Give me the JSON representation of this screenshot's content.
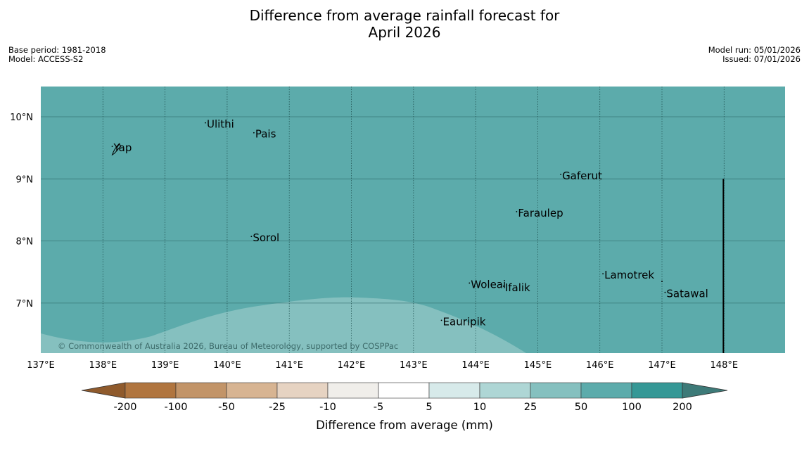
{
  "title": {
    "line1": "Difference from average rainfall forecast for",
    "line2": "April 2026"
  },
  "meta_left": {
    "base_period": "Base period: 1981-2018",
    "model": "Model: ACCESS-S2"
  },
  "meta_right": {
    "model_run": "Model run: 05/01/2026",
    "issued": "Issued: 07/01/2026"
  },
  "map": {
    "lon_range": [
      137,
      149
    ],
    "lat_range": [
      6.2,
      10.5
    ],
    "lon_ticks": [
      137,
      138,
      139,
      140,
      141,
      142,
      143,
      144,
      145,
      146,
      147,
      148
    ],
    "lon_labels": [
      "137°E",
      "138°E",
      "139°E",
      "140°E",
      "141°E",
      "142°E",
      "143°E",
      "144°E",
      "145°E",
      "146°E",
      "147°E",
      "148°E"
    ],
    "lat_ticks": [
      7,
      8,
      9,
      10
    ],
    "lat_labels": [
      "7°N",
      "8°N",
      "9°N",
      "10°N"
    ],
    "background_category": "50 to 100 mm",
    "lighter_zone_category": "25 to 50 mm",
    "islands": [
      {
        "name": "Yap",
        "lon": 138.15,
        "lat": 9.5
      },
      {
        "name": "Ulithi",
        "lon": 139.65,
        "lat": 9.88
      },
      {
        "name": "Pais",
        "lon": 140.43,
        "lat": 9.72
      },
      {
        "name": "Gaferut",
        "lon": 145.37,
        "lat": 9.05
      },
      {
        "name": "Faraulep",
        "lon": 144.66,
        "lat": 8.45
      },
      {
        "name": "Sorol",
        "lon": 140.39,
        "lat": 8.05
      },
      {
        "name": "Woleai",
        "lon": 143.9,
        "lat": 7.3
      },
      {
        "name": "Ifalik",
        "lon": 144.45,
        "lat": 7.25
      },
      {
        "name": "Lamotrek",
        "lon": 146.05,
        "lat": 7.45
      },
      {
        "name": "Satawal",
        "lon": 147.05,
        "lat": 7.15
      },
      {
        "name": "Eauripik",
        "lon": 143.45,
        "lat": 6.7
      }
    ],
    "boundary_line": {
      "lon": 148,
      "lat_from": 6.2,
      "lat_to": 9.0
    },
    "copyright": "© Commonwealth of Australia 2026, Bureau of Meteorology, supported by COSPPac"
  },
  "colorbar": {
    "ticks": [
      "-200",
      "-100",
      "-50",
      "-25",
      "-10",
      "-5",
      "5",
      "10",
      "25",
      "50",
      "100",
      "200"
    ],
    "colors": [
      "#b0753f",
      "#c29468",
      "#d7b492",
      "#e6d3c2",
      "#f0eeea",
      "#ffffff",
      "#d7eaea",
      "#aed6d5",
      "#85c0bf",
      "#5cabab",
      "#359896"
    ],
    "under_color": "#8f5a2c",
    "over_color": "#3d7a78",
    "label": "Difference from average (mm)"
  },
  "colors": {
    "sea_wet": "#5cabab",
    "sea_lighter": "#85c0bf",
    "grid": "#2f6b6a"
  }
}
